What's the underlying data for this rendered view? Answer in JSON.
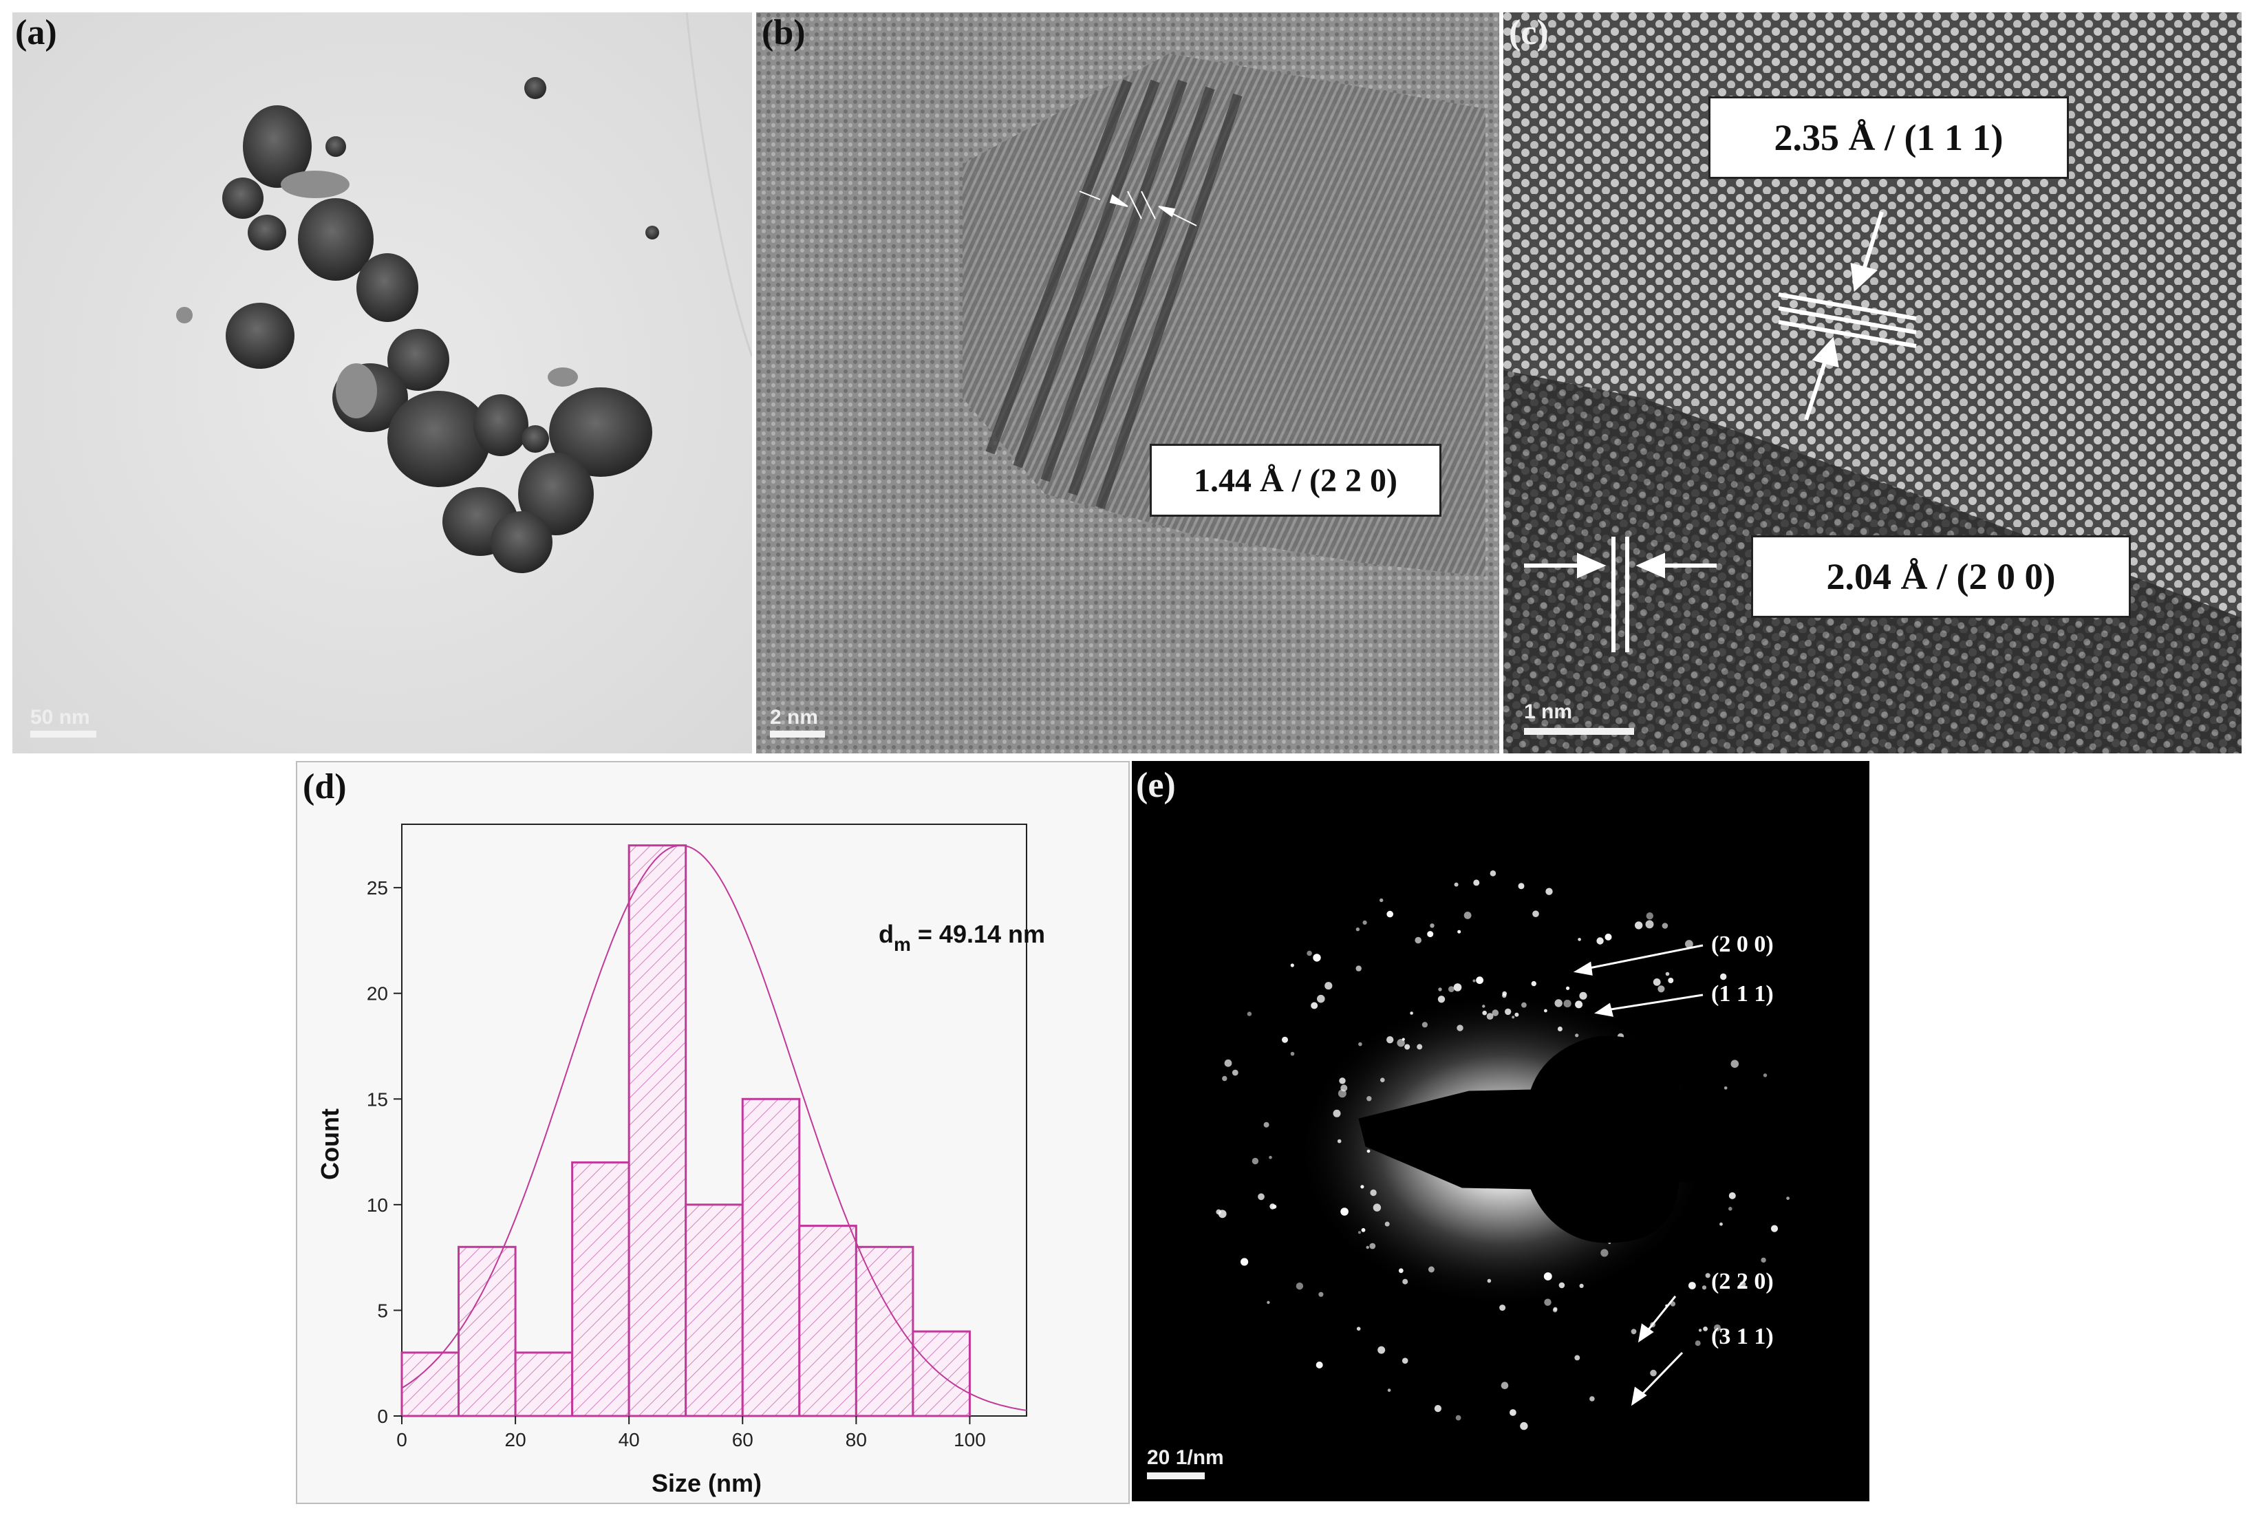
{
  "panels": {
    "a": {
      "label": "(a)",
      "scale": "50 nm"
    },
    "b": {
      "label": "(b)",
      "scale": "2 nm",
      "annotation": "1.44 Å / (2 2 0)"
    },
    "c": {
      "label": "(c)",
      "scale": "1 nm",
      "annotation_top": "2.35 Å / (1 1 1)",
      "annotation_bottom": "2.04 Å / (2 0 0)"
    },
    "d": {
      "label": "(d)",
      "annotation_main": "d",
      "annotation_sub": "m",
      "annotation_rest": " = 49.14 nm"
    },
    "e": {
      "label": "(e)",
      "scale": "20 1/nm",
      "rings": [
        "(2 0 0)",
        "(1 1 1)",
        "(2 2 0)",
        "(3 1 1)"
      ]
    }
  },
  "colors": {
    "histogram": "#c0399a",
    "hatch": "#d77fbf",
    "plot_bg": "#f7f7f7"
  },
  "chart_data": {
    "type": "bar",
    "xlabel": "Size (nm)",
    "ylabel": "Count",
    "bin_edges": [
      0,
      10,
      20,
      30,
      40,
      50,
      60,
      70,
      80,
      90,
      100
    ],
    "values": [
      3,
      8,
      3,
      12,
      27,
      10,
      15,
      9,
      8,
      4
    ],
    "xlim": [
      0,
      110
    ],
    "ylim": [
      0,
      28
    ],
    "xticks": [
      0,
      20,
      40,
      60,
      80,
      100
    ],
    "yticks": [
      0,
      5,
      10,
      15,
      20,
      25
    ],
    "fit": {
      "type": "gaussian",
      "center": 49.14,
      "peak": 27,
      "sigma": 20
    }
  }
}
